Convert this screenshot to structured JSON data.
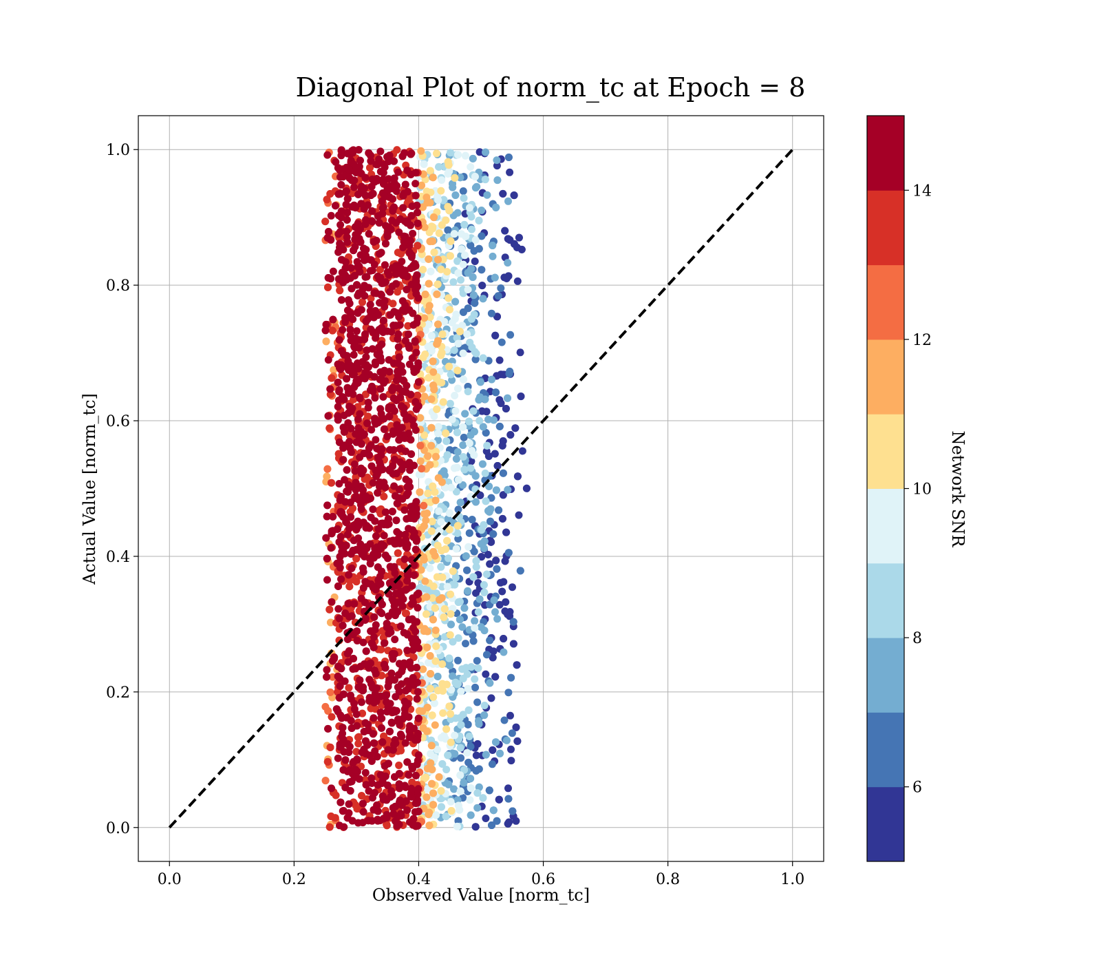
{
  "chart_data": {
    "type": "scatter",
    "title": "Diagonal Plot of norm_tc at Epoch = 8",
    "xlabel": "Observed Value [norm_tc]",
    "ylabel": "Actual Value [norm_tc]",
    "xlim": [
      -0.05,
      1.05
    ],
    "ylim": [
      -0.05,
      1.05
    ],
    "xticks": [
      "0.0",
      "0.2",
      "0.4",
      "0.6",
      "0.8",
      "1.0"
    ],
    "yticks": [
      "0.0",
      "0.2",
      "0.4",
      "0.6",
      "0.8",
      "1.0"
    ],
    "grid": true,
    "diagonal_line": {
      "x": [
        0,
        1
      ],
      "y": [
        0,
        1
      ],
      "style": "dashed",
      "color": "#000000"
    },
    "point_cloud": {
      "x_range": [
        0.25,
        0.58
      ],
      "y_range": [
        0.0,
        1.0
      ],
      "dense_core_x": [
        0.27,
        0.4
      ]
    },
    "colorbar": {
      "label": "Network SNR",
      "range": [
        5,
        15
      ],
      "ticks": [
        "6",
        "8",
        "10",
        "12",
        "14"
      ],
      "colors": [
        "#313695",
        "#4575b4",
        "#74add1",
        "#abd9e9",
        "#e0f3f8",
        "#fee090",
        "#fdae61",
        "#f46d43",
        "#d73027",
        "#a50026"
      ]
    }
  }
}
